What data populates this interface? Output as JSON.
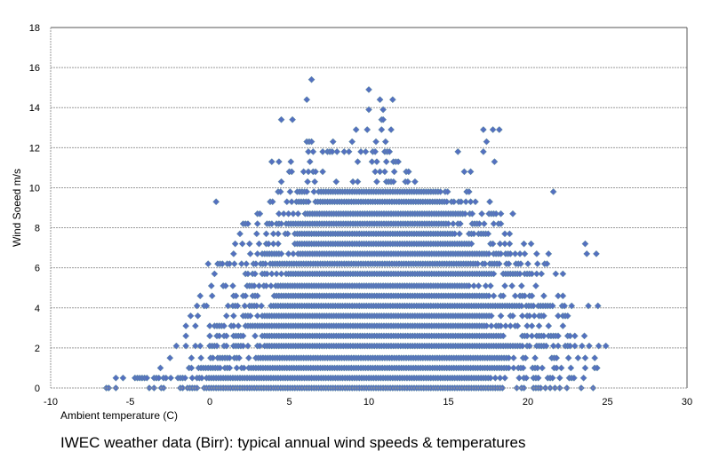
{
  "chart_data": {
    "type": "scatter",
    "title": "IWEC weather data (Birr): typical annual wind speeds & temperatures",
    "xlabel": "Ambient temperature (C)",
    "ylabel": "Wind Soeed m/s",
    "xlim": [
      -10,
      30
    ],
    "ylim": [
      0,
      18
    ],
    "xticks": [
      "-10",
      "-5",
      "0",
      "5",
      "10",
      "15",
      "20",
      "25",
      "30"
    ],
    "yticks": [
      "0",
      "2",
      "4",
      "6",
      "8",
      "10",
      "12",
      "14",
      "16",
      "18"
    ],
    "grid": "horizontal",
    "legend": "none",
    "marker": "diamond",
    "marker_color": "#5470c0",
    "note_on_data": "Wind speeds are recorded at discrete levels; each level is given with the range of temperatures at which points occur, plus isolated points",
    "levels": [
      {
        "y": 0.0,
        "x_range": [
          -6.5,
          24.2
        ]
      },
      {
        "y": 0.5,
        "x_range": [
          -5.9,
          23.6
        ]
      },
      {
        "y": 1.0,
        "x_range": [
          -3.1,
          24.4
        ]
      },
      {
        "y": 1.5,
        "x_range": [
          -2.5,
          24.3
        ]
      },
      {
        "y": 2.1,
        "x_range": [
          -2.1,
          24.9
        ]
      },
      {
        "y": 2.6,
        "x_range": [
          -1.5,
          23.6
        ]
      },
      {
        "y": 3.1,
        "x_range": [
          -1.5,
          22.2
        ]
      },
      {
        "y": 3.6,
        "x_range": [
          -1.2,
          22.5
        ]
      },
      {
        "y": 4.1,
        "x_range": [
          -0.8,
          24.4
        ]
      },
      {
        "y": 4.6,
        "x_range": [
          -0.6,
          22.2
        ]
      },
      {
        "y": 5.1,
        "x_range": [
          0.1,
          20.5
        ]
      },
      {
        "y": 5.7,
        "x_range": [
          0.3,
          22.3
        ]
      },
      {
        "y": 6.2,
        "x_range": [
          -0.1,
          21.2
        ]
      },
      {
        "y": 6.7,
        "x_range": [
          1.5,
          21.4
        ]
      },
      {
        "y": 7.2,
        "x_range": [
          1.6,
          20.3
        ]
      },
      {
        "y": 7.7,
        "x_range": [
          1.9,
          18.9
        ]
      },
      {
        "y": 8.2,
        "x_range": [
          2.1,
          18.3
        ]
      },
      {
        "y": 8.7,
        "x_range": [
          3.0,
          19.1
        ]
      },
      {
        "y": 9.3,
        "x_range": [
          3.8,
          17.7
        ]
      },
      {
        "y": 9.8,
        "x_range": [
          4.3,
          16.4
        ]
      },
      {
        "y": 10.3,
        "x_range": [
          4.5,
          13.0
        ]
      },
      {
        "y": 10.8,
        "x_range": [
          5.0,
          12.5
        ]
      },
      {
        "y": 11.3,
        "x_range": [
          3.9,
          11.9
        ]
      },
      {
        "y": 11.8,
        "x_range": [
          6.2,
          11.3
        ]
      },
      {
        "y": 12.3,
        "x_range": [
          6.1,
          11.1
        ]
      }
    ],
    "points": [
      [
        23.7,
        6.7
      ],
      [
        24.3,
        6.7
      ],
      [
        23.6,
        7.2
      ],
      [
        0.4,
        9.3
      ],
      [
        21.6,
        9.8
      ],
      [
        16.0,
        10.8
      ],
      [
        16.4,
        10.8
      ],
      [
        17.9,
        11.3
      ],
      [
        15.6,
        11.8
      ],
      [
        17.2,
        11.8
      ],
      [
        17.4,
        12.3
      ],
      [
        9.2,
        12.9
      ],
      [
        9.9,
        12.9
      ],
      [
        10.8,
        12.9
      ],
      [
        11.4,
        12.9
      ],
      [
        17.2,
        12.9
      ],
      [
        17.8,
        12.9
      ],
      [
        18.2,
        12.9
      ],
      [
        4.5,
        13.4
      ],
      [
        5.2,
        13.4
      ],
      [
        10.8,
        13.4
      ],
      [
        10.9,
        13.4
      ],
      [
        10.0,
        13.9
      ],
      [
        10.9,
        13.9
      ],
      [
        6.1,
        14.4
      ],
      [
        10.7,
        14.4
      ],
      [
        11.5,
        14.4
      ],
      [
        10.0,
        14.9
      ],
      [
        6.4,
        15.4
      ]
    ]
  }
}
